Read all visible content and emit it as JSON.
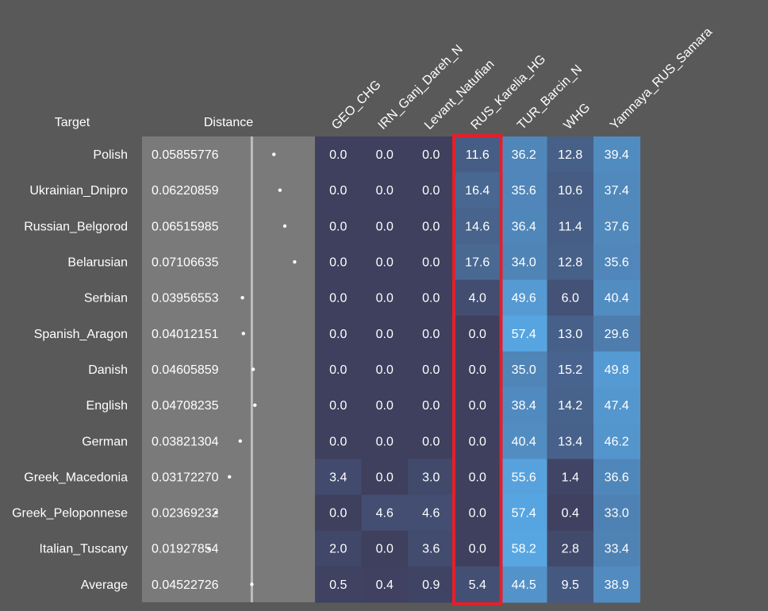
{
  "chart_data": {
    "type": "heatmap",
    "row_header": "Target",
    "distance_header": "Distance",
    "columns": [
      "GEO_CHG",
      "IRN_Ganj_Dareh_N",
      "Levant_Natufian",
      "RUS_Karelia_HG",
      "TUR_Barcin_N",
      "WHG",
      "Yamnaya_RUS_Samara"
    ],
    "rows": [
      {
        "target": "Polish",
        "distance": "0.05855776",
        "values": [
          0.0,
          0.0,
          0.0,
          11.6,
          36.2,
          12.8,
          39.4
        ]
      },
      {
        "target": "Ukrainian_Dnipro",
        "distance": "0.06220859",
        "values": [
          0.0,
          0.0,
          0.0,
          16.4,
          35.6,
          10.6,
          37.4
        ]
      },
      {
        "target": "Russian_Belgorod",
        "distance": "0.06515985",
        "values": [
          0.0,
          0.0,
          0.0,
          14.6,
          36.4,
          11.4,
          37.6
        ]
      },
      {
        "target": "Belarusian",
        "distance": "0.07106635",
        "values": [
          0.0,
          0.0,
          0.0,
          17.6,
          34.0,
          12.8,
          35.6
        ]
      },
      {
        "target": "Serbian",
        "distance": "0.03956553",
        "values": [
          0.0,
          0.0,
          0.0,
          4.0,
          49.6,
          6.0,
          40.4
        ]
      },
      {
        "target": "Spanish_Aragon",
        "distance": "0.04012151",
        "values": [
          0.0,
          0.0,
          0.0,
          0.0,
          57.4,
          13.0,
          29.6
        ]
      },
      {
        "target": "Danish",
        "distance": "0.04605859",
        "values": [
          0.0,
          0.0,
          0.0,
          0.0,
          35.0,
          15.2,
          49.8
        ]
      },
      {
        "target": "English",
        "distance": "0.04708235",
        "values": [
          0.0,
          0.0,
          0.0,
          0.0,
          38.4,
          14.2,
          47.4
        ]
      },
      {
        "target": "German",
        "distance": "0.03821304",
        "values": [
          0.0,
          0.0,
          0.0,
          0.0,
          40.4,
          13.4,
          46.2
        ]
      },
      {
        "target": "Greek_Macedonia",
        "distance": "0.03172270",
        "values": [
          3.4,
          0.0,
          3.0,
          0.0,
          55.6,
          1.4,
          36.6
        ]
      },
      {
        "target": "Greek_Peloponnese",
        "distance": "0.02369232",
        "values": [
          0.0,
          4.6,
          4.6,
          0.0,
          57.4,
          0.4,
          33.0
        ]
      },
      {
        "target": "Italian_Tuscany",
        "distance": "0.01927854",
        "values": [
          2.0,
          0.0,
          3.6,
          0.0,
          58.2,
          2.8,
          33.4
        ]
      },
      {
        "target": "Average",
        "distance": "0.04522726",
        "values": [
          0.5,
          0.4,
          0.9,
          5.4,
          44.5,
          9.5,
          38.9
        ]
      }
    ],
    "value_range": [
      0,
      60
    ],
    "distance_range": [
      0,
      0.08
    ],
    "distance_average": 0.04522726,
    "highlighted_column": "RUS_Karelia_HG",
    "colors": {
      "background": "#595959",
      "distance_panel": "#7a7a7a",
      "cell_low": "#3f3f5e",
      "cell_high": "#58a8e4",
      "highlight": "#e3202a",
      "text": "#ffffff"
    }
  }
}
